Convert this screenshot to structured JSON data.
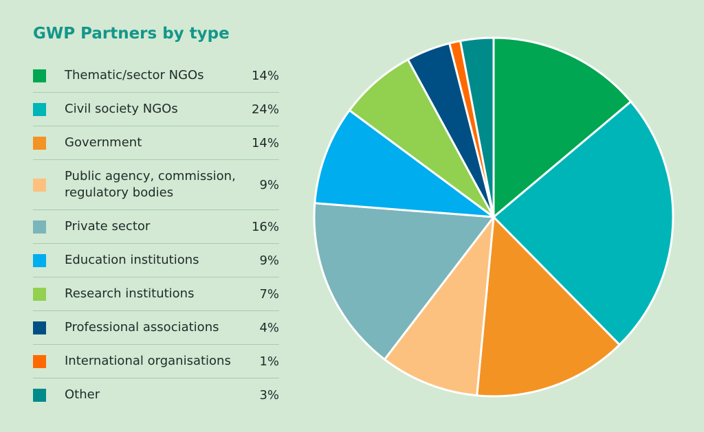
{
  "title": "GWP Partners by type",
  "chart_data": {
    "type": "pie",
    "title": "GWP Partners by type",
    "slices": [
      {
        "label": "Thematic/sector NGOs",
        "value": 14,
        "value_label": "14%",
        "color": "#00a651"
      },
      {
        "label": "Civil society NGOs",
        "value": 24,
        "value_label": "24%",
        "color": "#00b5b8"
      },
      {
        "label": "Government",
        "value": 14,
        "value_label": "14%",
        "color": "#f39323"
      },
      {
        "label": "Public agency, commission,\nregulatory bodies",
        "value": 9,
        "value_label": "9%",
        "color": "#fdc17f"
      },
      {
        "label": "Private sector",
        "value": 16,
        "value_label": "16%",
        "color": "#7ab5bb"
      },
      {
        "label": "Education institutions",
        "value": 9,
        "value_label": "9%",
        "color": "#00adef"
      },
      {
        "label": "Research institutions",
        "value": 7,
        "value_label": "7%",
        "color": "#92d050"
      },
      {
        "label": "Professional associations",
        "value": 4,
        "value_label": "4%",
        "color": "#004f84"
      },
      {
        "label": "International organisations",
        "value": 1,
        "value_label": "1%",
        "color": "#ff6a00"
      },
      {
        "label": "Other",
        "value": 3,
        "value_label": "3%",
        "color": "#008b8b"
      }
    ],
    "legend_position": "left",
    "start_angle_deg": 0,
    "direction": "clockwise"
  }
}
